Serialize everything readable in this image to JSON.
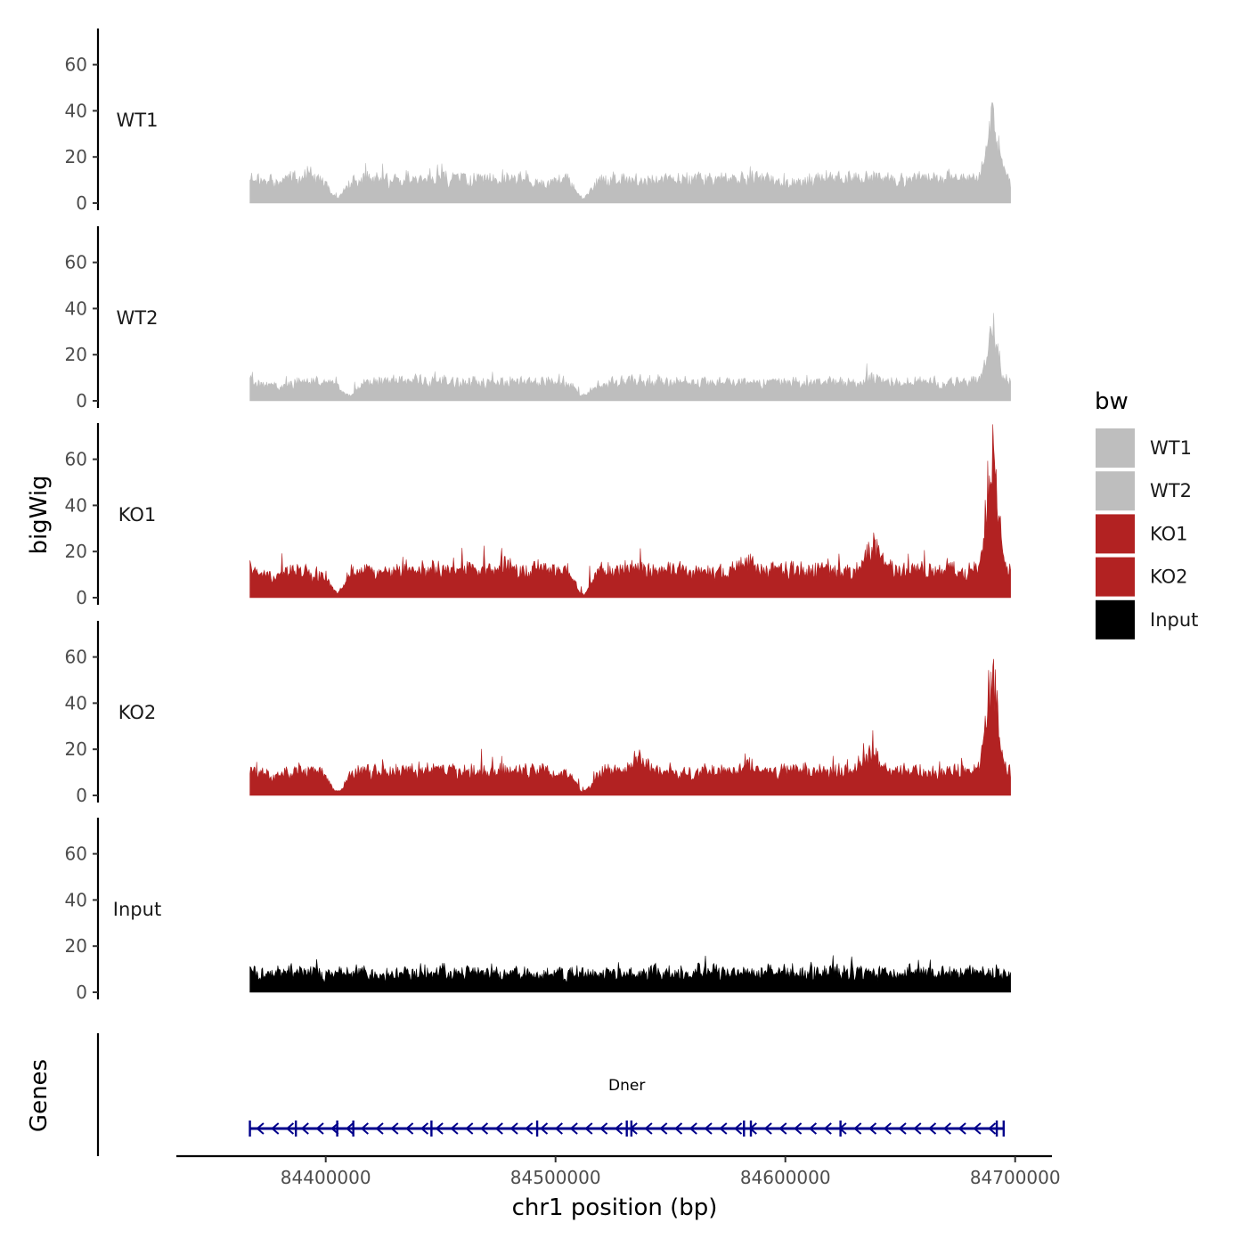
{
  "chart_data": {
    "type": "area",
    "xlabel": "chr1 position (bp)",
    "ylabel": "bigWig",
    "genes_label": "Genes",
    "xlim": [
      84335000,
      84716000
    ],
    "data_range": [
      84367000,
      84698000
    ],
    "ylim": [
      0,
      78
    ],
    "yticks": [
      0,
      20,
      40,
      60
    ],
    "xticks": [
      84400000,
      84500000,
      84600000,
      84700000
    ],
    "xtick_labels": [
      "84400000",
      "84500000",
      "84600000",
      "84700000"
    ],
    "legend": {
      "title": "bw",
      "entries": [
        {
          "label": "WT1",
          "color": "#bebebe"
        },
        {
          "label": "WT2",
          "color": "#bebebe"
        },
        {
          "label": "KO1",
          "color": "#b22222"
        },
        {
          "label": "KO2",
          "color": "#b22222"
        },
        {
          "label": "Input",
          "color": "#000000"
        }
      ]
    },
    "tracks": [
      {
        "name": "WT1",
        "color": "#bebebe",
        "base": 8,
        "noise": 5,
        "features": [
          {
            "pos": 84377000,
            "height": 10
          },
          {
            "pos": 84405000,
            "height": 3
          },
          {
            "pos": 84442000,
            "height": 12
          },
          {
            "pos": 84477000,
            "height": 14
          },
          {
            "pos": 84495000,
            "height": 10
          },
          {
            "pos": 84512000,
            "height": 3
          },
          {
            "pos": 84540000,
            "height": 12
          },
          {
            "pos": 84600000,
            "height": 10
          },
          {
            "pos": 84638000,
            "height": 14
          },
          {
            "pos": 84690000,
            "height": 45
          }
        ]
      },
      {
        "name": "WT2",
        "color": "#bebebe",
        "base": 6,
        "noise": 4,
        "features": [
          {
            "pos": 84380000,
            "height": 8
          },
          {
            "pos": 84410000,
            "height": 3
          },
          {
            "pos": 84477000,
            "height": 10
          },
          {
            "pos": 84512000,
            "height": 3
          },
          {
            "pos": 84580000,
            "height": 10
          },
          {
            "pos": 84638000,
            "height": 12
          },
          {
            "pos": 84690000,
            "height": 38
          }
        ]
      },
      {
        "name": "KO1",
        "color": "#b22222",
        "base": 9,
        "noise": 6,
        "features": [
          {
            "pos": 84377000,
            "height": 12
          },
          {
            "pos": 84405000,
            "height": 3
          },
          {
            "pos": 84430000,
            "height": 14
          },
          {
            "pos": 84477000,
            "height": 18
          },
          {
            "pos": 84500000,
            "height": 16
          },
          {
            "pos": 84512000,
            "height": 2
          },
          {
            "pos": 84583000,
            "height": 20
          },
          {
            "pos": 84638000,
            "height": 28
          },
          {
            "pos": 84690000,
            "height": 72
          }
        ]
      },
      {
        "name": "KO2",
        "color": "#b22222",
        "base": 8,
        "noise": 5,
        "features": [
          {
            "pos": 84377000,
            "height": 10
          },
          {
            "pos": 84405000,
            "height": 2
          },
          {
            "pos": 84477000,
            "height": 14
          },
          {
            "pos": 84512000,
            "height": 2
          },
          {
            "pos": 84537000,
            "height": 20
          },
          {
            "pos": 84583000,
            "height": 18
          },
          {
            "pos": 84638000,
            "height": 22
          },
          {
            "pos": 84690000,
            "height": 62
          }
        ]
      },
      {
        "name": "Input",
        "color": "#000000",
        "base": 6,
        "noise": 5,
        "features": []
      }
    ],
    "gene": {
      "name": "Dner",
      "start": 84367000,
      "end": 84695000,
      "strand": "-",
      "color": "#00008b",
      "exons": [
        84367000,
        84387000,
        84405000,
        84412000,
        84446000,
        84492000,
        84531000,
        84533000,
        84582000,
        84585000,
        84624000,
        84692000,
        84695000
      ]
    }
  }
}
